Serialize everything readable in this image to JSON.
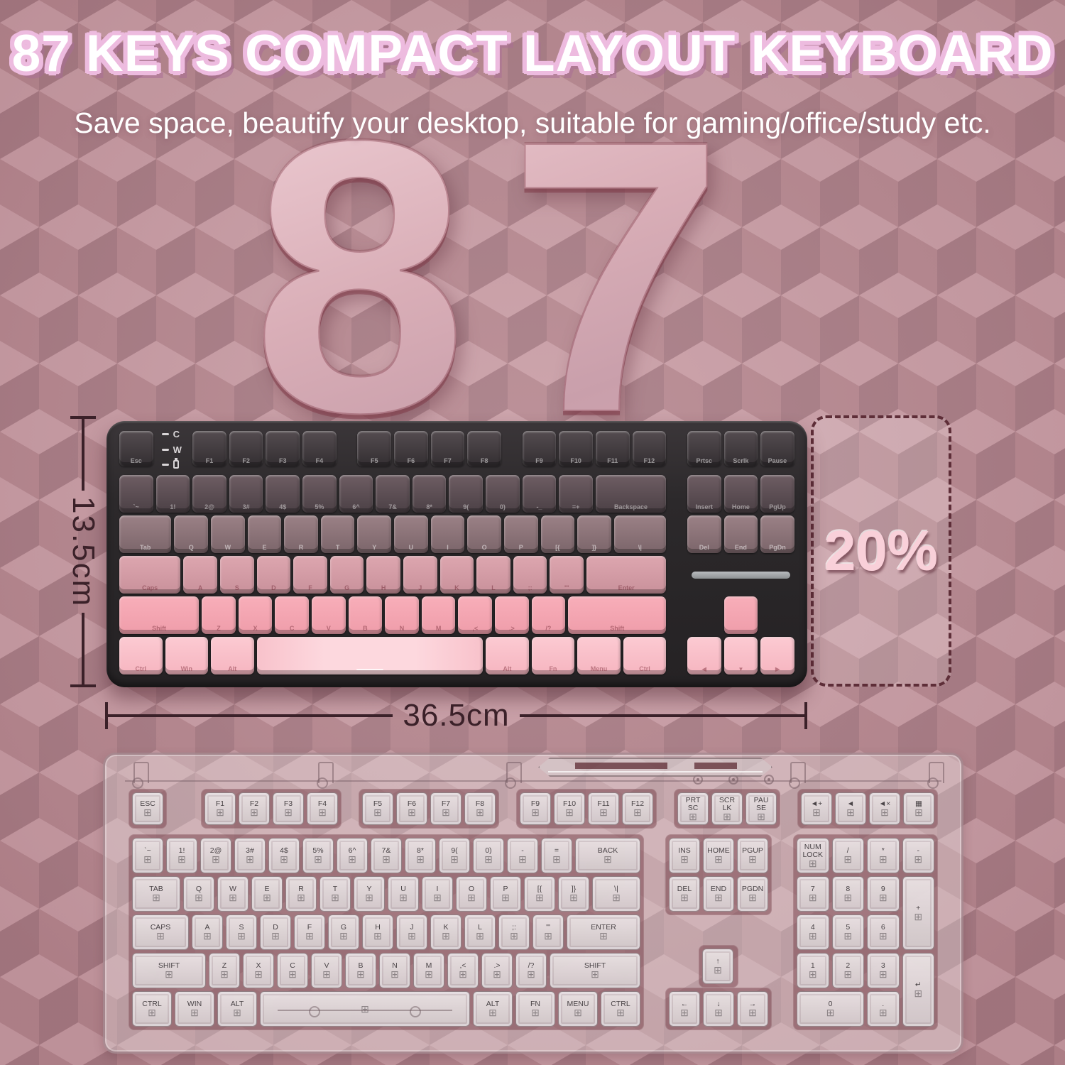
{
  "header": {
    "title": "87 KEYS COMPACT LAYOUT KEYBOARD",
    "subtitle": "Save space, beautify your desktop, suitable for gaming/office/study etc."
  },
  "big_number": "87",
  "dimensions": {
    "height_label": "13.5cm",
    "width_label": "36.5cm",
    "space_saving_label": "20%"
  },
  "colors": {
    "background_cube_top": "#c89ca4",
    "background_cube_left": "#b5868e",
    "background_cube_right": "#a67a83",
    "title_outline": "#edbbdf",
    "keyboard_case": "#2c292b",
    "dimension_line": "#3b2129",
    "dashed_border": "#5e2e38",
    "row_gradient": [
      "#3f393c",
      "#5d4f54",
      "#8b7278",
      "#d39ca6",
      "#f4a5b1",
      "#f9c0ca"
    ]
  },
  "tkl": {
    "indicators": [
      {
        "label": "C"
      },
      {
        "label": "W"
      },
      {
        "label": "",
        "battery": true
      }
    ],
    "rows": [
      [
        {
          "t": "Esc",
          "u": 1,
          "c": "f",
          "n": "esc-key"
        },
        {
          "ind": 1
        },
        {
          "t": "F1"
        },
        {
          "t": "F2"
        },
        {
          "t": "F3"
        },
        {
          "t": "F4"
        },
        {
          "g": 0.5
        },
        {
          "t": "F5"
        },
        {
          "t": "F6"
        },
        {
          "t": "F7"
        },
        {
          "t": "F8"
        },
        {
          "g": 0.5
        },
        {
          "t": "F9"
        },
        {
          "t": "F10"
        },
        {
          "t": "F11"
        },
        {
          "t": "F12"
        },
        {
          "g": 0.5
        },
        {
          "t": "Prtsc"
        },
        {
          "t": "Scrlk"
        },
        {
          "t": "Pause"
        }
      ],
      [
        {
          "t": "`~",
          "c": "2"
        },
        {
          "t": "1!"
        },
        {
          "t": "2@"
        },
        {
          "t": "3#"
        },
        {
          "t": "4$"
        },
        {
          "t": "5%"
        },
        {
          "t": "6^"
        },
        {
          "t": "7&"
        },
        {
          "t": "8*"
        },
        {
          "t": "9("
        },
        {
          "t": "0)"
        },
        {
          "t": "-_"
        },
        {
          "t": "=+"
        },
        {
          "t": "Backspace",
          "u": 2
        },
        {
          "g": 0.5
        },
        {
          "t": "Insert"
        },
        {
          "t": "Home"
        },
        {
          "t": "PgUp"
        }
      ],
      [
        {
          "t": "Tab",
          "u": 1.5,
          "c": "3"
        },
        {
          "t": "Q"
        },
        {
          "t": "W"
        },
        {
          "t": "E"
        },
        {
          "t": "R"
        },
        {
          "t": "T"
        },
        {
          "t": "Y"
        },
        {
          "t": "U"
        },
        {
          "t": "I"
        },
        {
          "t": "O"
        },
        {
          "t": "P"
        },
        {
          "t": "[{"
        },
        {
          "t": "]}"
        },
        {
          "t": "\\|",
          "u": 1.5
        },
        {
          "g": 0.5
        },
        {
          "t": "Del"
        },
        {
          "t": "End"
        },
        {
          "t": "PgDn"
        }
      ],
      [
        {
          "t": "Caps",
          "u": 1.75,
          "c": "4"
        },
        {
          "t": "A"
        },
        {
          "t": "S"
        },
        {
          "t": "D"
        },
        {
          "t": "F"
        },
        {
          "t": "G"
        },
        {
          "t": "H"
        },
        {
          "t": "J"
        },
        {
          "t": "K"
        },
        {
          "t": "L"
        },
        {
          "t": ";:"
        },
        {
          "t": "'\""
        },
        {
          "t": "Enter",
          "u": 2.25
        },
        {
          "g": 0.5
        },
        {
          "bar": 3
        }
      ],
      [
        {
          "t": "Shift",
          "u": 2.25,
          "c": "5"
        },
        {
          "t": "Z"
        },
        {
          "t": "X"
        },
        {
          "t": "C"
        },
        {
          "t": "V"
        },
        {
          "t": "B"
        },
        {
          "t": "N"
        },
        {
          "t": "M"
        },
        {
          "t": ",<"
        },
        {
          "t": ".>"
        },
        {
          "t": "/?"
        },
        {
          "t": "Shift",
          "u": 2.75
        },
        {
          "g": 0.5
        },
        {
          "g": 1
        },
        {
          "t": "",
          "n": "arrow-up-key"
        },
        {
          "g": 1
        }
      ],
      [
        {
          "t": "Ctrl",
          "u": 1.25,
          "c": "6"
        },
        {
          "t": "Win",
          "u": 1.25
        },
        {
          "t": "Alt",
          "u": 1.25
        },
        {
          "t": "",
          "u": 6.25,
          "space": 1,
          "n": "spacebar"
        },
        {
          "t": "Alt",
          "u": 1.25
        },
        {
          "t": "Fn",
          "u": 1.25
        },
        {
          "t": "Menu",
          "u": 1.25
        },
        {
          "t": "Ctrl",
          "u": 1.25
        },
        {
          "g": 0.5
        },
        {
          "t": "◀",
          "ar": 1,
          "n": "arrow-left-key"
        },
        {
          "t": "▼",
          "ar": 1,
          "n": "arrow-down-key"
        },
        {
          "t": "▶",
          "ar": 1,
          "n": "arrow-right-key"
        }
      ]
    ]
  },
  "ghost": {
    "switch_glyph": "⊞",
    "frow": [
      {
        "gap_after": 1,
        "keys": [
          {
            "t": "ESC"
          }
        ]
      },
      {
        "gap_after": 0.5,
        "keys": [
          {
            "t": "F1"
          },
          {
            "t": "F2"
          },
          {
            "t": "F3"
          },
          {
            "t": "F4"
          }
        ]
      },
      {
        "gap_after": 0.5,
        "keys": [
          {
            "t": "F5"
          },
          {
            "t": "F6"
          },
          {
            "t": "F7"
          },
          {
            "t": "F8"
          }
        ]
      },
      {
        "gap_after": 0.5,
        "keys": [
          {
            "t": "F9"
          },
          {
            "t": "F10"
          },
          {
            "t": "F11"
          },
          {
            "t": "F12"
          }
        ]
      },
      {
        "gap_after": 0.5,
        "keys": [
          {
            "t": "PRT\nSC"
          },
          {
            "t": "SCR\nLK"
          },
          {
            "t": "PAU\nSE"
          }
        ]
      },
      {
        "gap_after": 0,
        "keys": [
          {
            "t": "◄+",
            "n": "volume-down-key"
          },
          {
            "t": "◄",
            "n": "volume-up-key"
          },
          {
            "t": "◄×",
            "n": "mute-key"
          },
          {
            "t": "▦",
            "n": "calculator-key"
          }
        ]
      }
    ],
    "main_rows": [
      [
        {
          "t": "`~"
        },
        {
          "t": "1!"
        },
        {
          "t": "2@"
        },
        {
          "t": "3#"
        },
        {
          "t": "4$"
        },
        {
          "t": "5%"
        },
        {
          "t": "6^"
        },
        {
          "t": "7&"
        },
        {
          "t": "8*"
        },
        {
          "t": "9("
        },
        {
          "t": "0)"
        },
        {
          "t": "-"
        },
        {
          "t": "="
        },
        {
          "t": "BACK",
          "u": 2
        }
      ],
      [
        {
          "t": "TAB",
          "u": 1.5
        },
        {
          "t": "Q"
        },
        {
          "t": "W"
        },
        {
          "t": "E"
        },
        {
          "t": "R"
        },
        {
          "t": "T"
        },
        {
          "t": "Y"
        },
        {
          "t": "U"
        },
        {
          "t": "I"
        },
        {
          "t": "O"
        },
        {
          "t": "P"
        },
        {
          "t": "[{"
        },
        {
          "t": "]}"
        },
        {
          "t": "\\|",
          "u": 1.5
        }
      ],
      [
        {
          "t": "CAPS",
          "u": 1.75
        },
        {
          "t": "A"
        },
        {
          "t": "S"
        },
        {
          "t": "D"
        },
        {
          "t": "F"
        },
        {
          "t": "G"
        },
        {
          "t": "H"
        },
        {
          "t": "J"
        },
        {
          "t": "K"
        },
        {
          "t": "L"
        },
        {
          "t": ";:"
        },
        {
          "t": "'\""
        },
        {
          "t": "ENTER",
          "u": 2.25
        }
      ],
      [
        {
          "t": "SHIFT",
          "u": 2.25
        },
        {
          "t": "Z"
        },
        {
          "t": "X"
        },
        {
          "t": "C"
        },
        {
          "t": "V"
        },
        {
          "t": "B"
        },
        {
          "t": "N"
        },
        {
          "t": "M"
        },
        {
          "t": ",<"
        },
        {
          "t": ".>"
        },
        {
          "t": "/?"
        },
        {
          "t": "SHIFT",
          "u": 2.75
        }
      ],
      [
        {
          "t": "CTRL",
          "u": 1.25
        },
        {
          "t": "WIN",
          "u": 1.25
        },
        {
          "t": "ALT",
          "u": 1.25
        },
        {
          "t": "",
          "u": 6.25,
          "space": 1,
          "n": "spacebar"
        },
        {
          "t": "ALT",
          "u": 1.25
        },
        {
          "t": "FN",
          "u": 1.25
        },
        {
          "t": "MENU",
          "u": 1.25
        },
        {
          "t": "CTRL",
          "u": 1.25
        }
      ]
    ],
    "nav_top": [
      [
        "INS",
        "HOME",
        "PGUP"
      ],
      [
        "DEL",
        "END",
        "PGDN"
      ]
    ],
    "nav_up": "↑",
    "nav_arrows": [
      "←",
      "↓",
      "→"
    ],
    "numpad": [
      {
        "t": "NUM\nLOCK"
      },
      {
        "t": "/"
      },
      {
        "t": "*"
      },
      {
        "t": "-"
      },
      {
        "t": "7"
      },
      {
        "t": "8"
      },
      {
        "t": "9"
      },
      {
        "t": "+",
        "rs": 2
      },
      {
        "t": "4"
      },
      {
        "t": "5"
      },
      {
        "t": "6"
      },
      {
        "t": "1"
      },
      {
        "t": "2"
      },
      {
        "t": "3"
      },
      {
        "t": "↵",
        "rs": 2
      },
      {
        "t": "0",
        "cs": 2
      },
      {
        "t": "."
      }
    ]
  }
}
